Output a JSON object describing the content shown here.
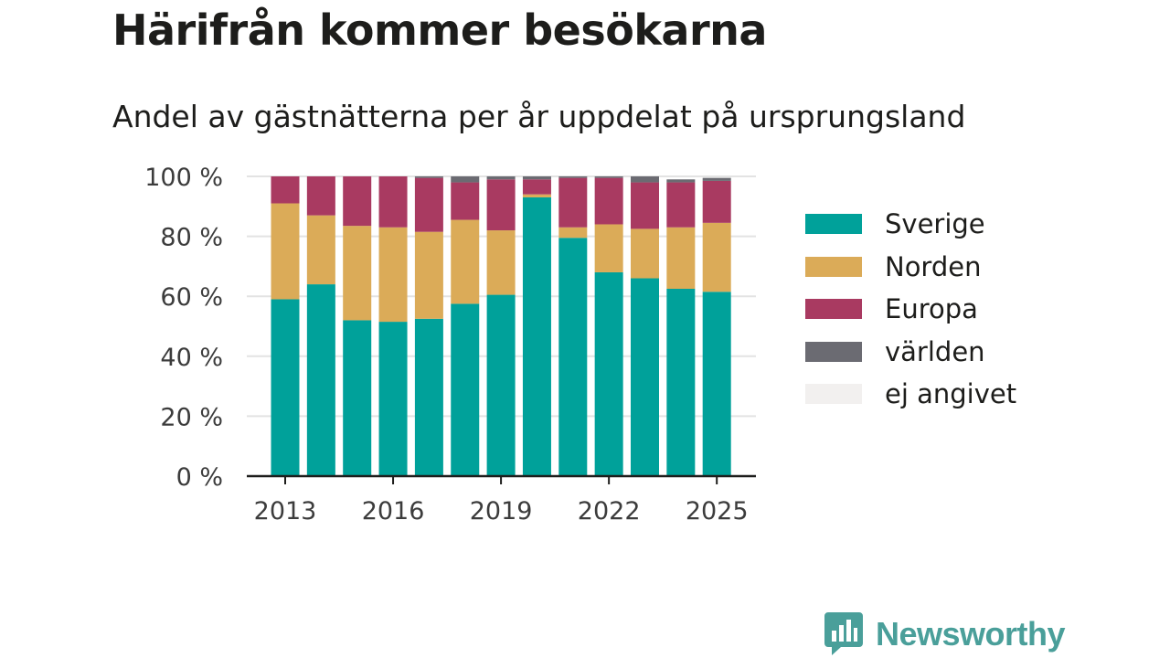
{
  "title": "Härifrån kommer besökarna",
  "subtitle": "Andel av gästnätterna per år uppdelat på ursprungsland",
  "brand": {
    "name": "Newsworthy",
    "icon": "bar-chart-speech-bubble-icon"
  },
  "chart_data": {
    "type": "bar",
    "stacked": true,
    "title": "Härifrån kommer besökarna",
    "subtitle": "Andel av gästnätterna per år uppdelat på ursprungsland",
    "xlabel": "",
    "ylabel": "",
    "ylim": [
      0,
      100
    ],
    "y_ticks": [
      0,
      20,
      40,
      60,
      80,
      100
    ],
    "y_tick_labels": [
      "0 %",
      "20 %",
      "40 %",
      "60 %",
      "80 %",
      "100 %"
    ],
    "x_tick_labels": [
      "2013",
      "2016",
      "2019",
      "2022",
      "2025"
    ],
    "grid": true,
    "legend_position": "right",
    "categories": [
      2013,
      2014,
      2015,
      2016,
      2017,
      2018,
      2019,
      2020,
      2021,
      2022,
      2023,
      2024,
      2025
    ],
    "series": [
      {
        "name": "Sverige",
        "color": "#00a19a",
        "values": [
          59,
          64,
          52,
          51.5,
          52.5,
          57.5,
          60.5,
          93,
          79.5,
          68,
          66,
          62.5,
          61.5
        ]
      },
      {
        "name": "Norden",
        "color": "#dbab58",
        "values": [
          32,
          23,
          31.5,
          31.5,
          29,
          28,
          21.5,
          1,
          3.5,
          16,
          16.5,
          20.5,
          23
        ]
      },
      {
        "name": "Europa",
        "color": "#a93a61",
        "values": [
          9,
          13,
          16.5,
          17,
          18,
          12.5,
          17,
          5,
          16.5,
          15.5,
          15.5,
          15,
          14
        ]
      },
      {
        "name": "världen",
        "color": "#6b6b72",
        "values": [
          0,
          0,
          0,
          0,
          0.5,
          2,
          1,
          1,
          0.5,
          0.5,
          2,
          1,
          1
        ]
      },
      {
        "name": "ej angivet",
        "color": "#f2f0ef",
        "values": [
          0,
          0,
          0,
          0,
          0,
          0,
          0,
          0,
          0,
          0,
          0,
          0,
          0
        ]
      }
    ]
  }
}
